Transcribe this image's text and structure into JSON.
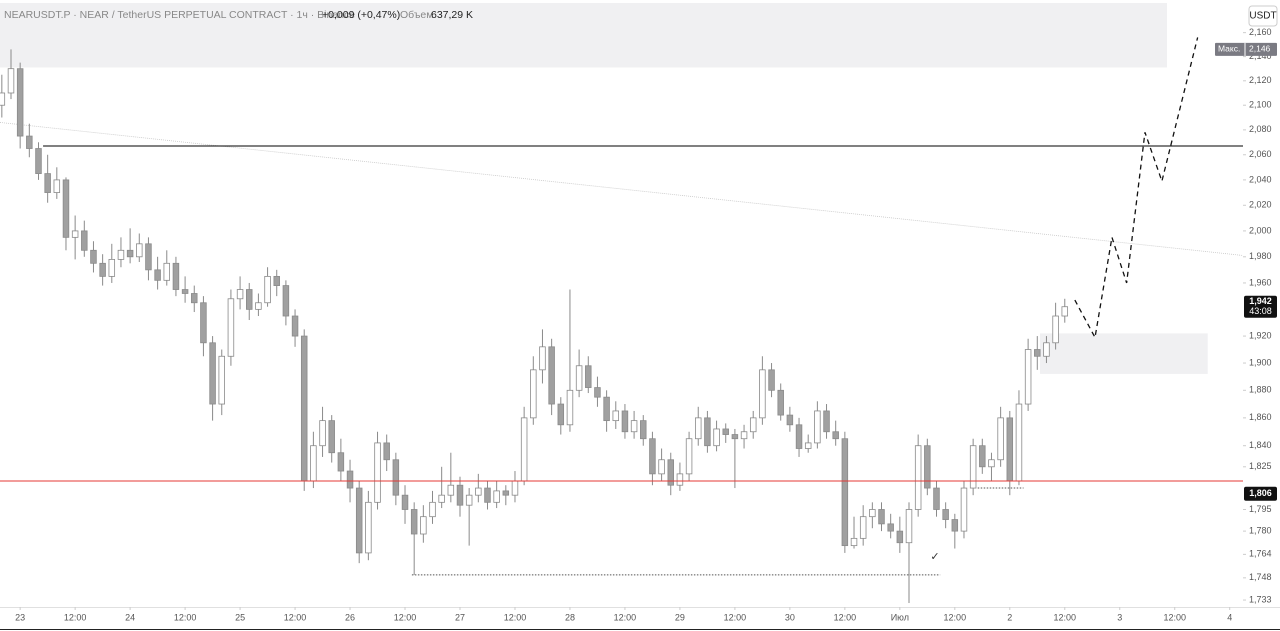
{
  "chart_data": {
    "type": "candlestick",
    "title": "NEARUSDT.P · NEAR / TetherUS PERPETUAL CONTRACT · 1ч · Binance",
    "change": "+0,009 (+0,47%)",
    "volume_label": "Объем",
    "volume": "637,29 K",
    "currency": "USDT",
    "log_scale": true,
    "up_color": "#ffffff",
    "down_color": "#a0a0a0",
    "wick_color": "#8a8a8a",
    "xlim": [
      -4.4,
      266.9
    ],
    "ylim": [
      1729,
      2185
    ],
    "xticks": [
      {
        "value": 0,
        "label": "23"
      },
      {
        "value": 12,
        "label": "12:00"
      },
      {
        "value": 24,
        "label": "24"
      },
      {
        "value": 36,
        "label": "12:00"
      },
      {
        "value": 48,
        "label": "25"
      },
      {
        "value": 60,
        "label": "12:00"
      },
      {
        "value": 72,
        "label": "26"
      },
      {
        "value": 84,
        "label": "12:00"
      },
      {
        "value": 96,
        "label": "27"
      },
      {
        "value": 108,
        "label": "12:00"
      },
      {
        "value": 120,
        "label": "28"
      },
      {
        "value": 132,
        "label": "12:00"
      },
      {
        "value": 144,
        "label": "29"
      },
      {
        "value": 156,
        "label": "12:00"
      },
      {
        "value": 168,
        "label": "30"
      },
      {
        "value": 180,
        "label": "12:00"
      },
      {
        "value": 192,
        "label": "Июл"
      },
      {
        "value": 204,
        "label": "12:00"
      },
      {
        "value": 216,
        "label": "2"
      },
      {
        "value": 228,
        "label": "12:00"
      },
      {
        "value": 240,
        "label": "3"
      },
      {
        "value": 252,
        "label": "12:00"
      },
      {
        "value": 264,
        "label": "4"
      }
    ],
    "yticks": [
      {
        "value": 2160,
        "label": "2,160"
      },
      {
        "value": 2140,
        "label": "2,140"
      },
      {
        "value": 2120,
        "label": "2,120"
      },
      {
        "value": 2100,
        "label": "2,100"
      },
      {
        "value": 2080,
        "label": "2,080"
      },
      {
        "value": 2060,
        "label": "2,060"
      },
      {
        "value": 2040,
        "label": "2,040"
      },
      {
        "value": 2020,
        "label": "2,020"
      },
      {
        "value": 2000,
        "label": "2,000"
      },
      {
        "value": 1980,
        "label": "1,980"
      },
      {
        "value": 1960,
        "label": "1,960"
      },
      {
        "value": 1920,
        "label": "1,920"
      },
      {
        "value": 1900,
        "label": "1,900"
      },
      {
        "value": 1880,
        "label": "1,880"
      },
      {
        "value": 1860,
        "label": "1,860"
      },
      {
        "value": 1840,
        "label": "1,840"
      },
      {
        "value": 1825,
        "label": "1,825"
      },
      {
        "value": 1795,
        "label": "1,795"
      },
      {
        "value": 1780,
        "label": "1,780"
      },
      {
        "value": 1764,
        "label": "1,764"
      },
      {
        "value": 1748,
        "label": "1,748"
      },
      {
        "value": 1733,
        "label": "1,733"
      }
    ],
    "x": [
      -4,
      -2,
      0,
      2,
      4,
      6,
      8,
      10,
      12,
      14,
      16,
      18,
      20,
      22,
      24,
      26,
      28,
      30,
      32,
      34,
      36,
      38,
      40,
      42,
      44,
      46,
      48,
      50,
      52,
      54,
      56,
      58,
      60,
      62,
      64,
      66,
      68,
      70,
      72,
      74,
      76,
      78,
      80,
      82,
      84,
      86,
      88,
      90,
      92,
      94,
      96,
      98,
      100,
      102,
      104,
      106,
      108,
      110,
      112,
      114,
      116,
      118,
      120,
      122,
      124,
      126,
      128,
      130,
      132,
      134,
      136,
      138,
      140,
      142,
      144,
      146,
      148,
      150,
      152,
      154,
      156,
      158,
      160,
      162,
      164,
      166,
      168,
      170,
      172,
      174,
      176,
      178,
      180,
      182,
      184,
      186,
      188,
      190,
      192,
      194,
      196,
      198,
      200,
      202,
      204,
      206,
      208,
      210,
      212,
      214,
      216,
      218,
      220,
      222,
      224,
      226,
      228
    ],
    "open": [
      2100,
      2110,
      2130,
      2075,
      2065,
      2045,
      2030,
      2040,
      1995,
      2000,
      1985,
      1975,
      1965,
      1978,
      1985,
      1980,
      1990,
      1970,
      1962,
      1975,
      1955,
      1952,
      1945,
      1915,
      1870,
      1905,
      1948,
      1955,
      1940,
      1945,
      1965,
      1958,
      1935,
      1920,
      1815,
      1840,
      1858,
      1835,
      1822,
      1810,
      1765,
      1800,
      1842,
      1830,
      1805,
      1795,
      1778,
      1790,
      1800,
      1805,
      1812,
      1798,
      1805,
      1810,
      1800,
      1808,
      1805,
      1815,
      1860,
      1895,
      1912,
      1870,
      1855,
      1880,
      1898,
      1882,
      1875,
      1858,
      1865,
      1850,
      1858,
      1845,
      1820,
      1830,
      1812,
      1820,
      1845,
      1860,
      1840,
      1852,
      1848,
      1845,
      1850,
      1860,
      1895,
      1880,
      1862,
      1855,
      1838,
      1842,
      1865,
      1850,
      1845,
      1770,
      1775,
      1790,
      1795,
      1785,
      1780,
      1772,
      1795,
      1840,
      1810,
      1795,
      1788,
      1780,
      1810,
      1840,
      1825,
      1830,
      1860,
      1815,
      1870,
      1910,
      1905,
      1915,
      1935
    ],
    "high": [
      2125,
      2146,
      2135,
      2085,
      2070,
      2060,
      2050,
      2042,
      2012,
      2008,
      1992,
      1982,
      1990,
      1995,
      2002,
      1998,
      1995,
      1980,
      1985,
      1980,
      1965,
      1958,
      1950,
      1920,
      1910,
      1955,
      1965,
      1960,
      1952,
      1972,
      1970,
      1962,
      1940,
      1925,
      1850,
      1868,
      1862,
      1845,
      1830,
      1815,
      1808,
      1850,
      1848,
      1835,
      1812,
      1800,
      1798,
      1808,
      1825,
      1835,
      1818,
      1810,
      1820,
      1815,
      1815,
      1812,
      1822,
      1868,
      1905,
      1925,
      1918,
      1875,
      1955,
      1910,
      1905,
      1890,
      1880,
      1872,
      1870,
      1865,
      1862,
      1850,
      1838,
      1835,
      1828,
      1850,
      1868,
      1865,
      1858,
      1856,
      1852,
      1855,
      1865,
      1905,
      1900,
      1885,
      1868,
      1860,
      1848,
      1872,
      1870,
      1858,
      1850,
      1790,
      1798,
      1800,
      1800,
      1792,
      1790,
      1800,
      1848,
      1845,
      1815,
      1800,
      1792,
      1815,
      1845,
      1845,
      1835,
      1868,
      1865,
      1880,
      1918,
      1920,
      1920,
      1945,
      1948
    ],
    "low": [
      2090,
      2105,
      2065,
      2058,
      2040,
      2022,
      2025,
      1985,
      1978,
      1980,
      1968,
      1958,
      1960,
      1972,
      1975,
      1976,
      1962,
      1955,
      1958,
      1950,
      1945,
      1938,
      1905,
      1858,
      1862,
      1898,
      1940,
      1932,
      1935,
      1942,
      1950,
      1928,
      1912,
      1808,
      1810,
      1832,
      1828,
      1815,
      1800,
      1758,
      1760,
      1795,
      1822,
      1798,
      1785,
      1750,
      1772,
      1785,
      1796,
      1800,
      1790,
      1770,
      1800,
      1795,
      1796,
      1798,
      1800,
      1812,
      1855,
      1885,
      1862,
      1848,
      1850,
      1875,
      1878,
      1868,
      1850,
      1852,
      1845,
      1845,
      1840,
      1812,
      1815,
      1805,
      1808,
      1815,
      1840,
      1835,
      1836,
      1842,
      1810,
      1838,
      1845,
      1855,
      1875,
      1858,
      1850,
      1832,
      1835,
      1838,
      1845,
      1840,
      1765,
      1768,
      1770,
      1782,
      1780,
      1775,
      1765,
      1731,
      1790,
      1805,
      1790,
      1782,
      1768,
      1775,
      1805,
      1820,
      1815,
      1825,
      1805,
      1812,
      1865,
      1895,
      1900,
      1910,
      1930
    ],
    "close": [
      2110,
      2130,
      2075,
      2065,
      2045,
      2030,
      2040,
      1995,
      2000,
      1985,
      1975,
      1965,
      1978,
      1985,
      1980,
      1990,
      1970,
      1962,
      1975,
      1955,
      1952,
      1945,
      1915,
      1870,
      1905,
      1948,
      1955,
      1940,
      1945,
      1965,
      1958,
      1935,
      1920,
      1815,
      1840,
      1858,
      1835,
      1822,
      1810,
      1765,
      1800,
      1842,
      1830,
      1805,
      1795,
      1778,
      1790,
      1800,
      1805,
      1812,
      1798,
      1805,
      1810,
      1800,
      1808,
      1805,
      1815,
      1860,
      1895,
      1912,
      1870,
      1855,
      1880,
      1898,
      1882,
      1875,
      1858,
      1865,
      1850,
      1858,
      1845,
      1820,
      1830,
      1812,
      1820,
      1845,
      1860,
      1840,
      1852,
      1848,
      1845,
      1850,
      1860,
      1895,
      1880,
      1862,
      1855,
      1838,
      1842,
      1865,
      1850,
      1845,
      1770,
      1775,
      1790,
      1795,
      1785,
      1780,
      1772,
      1795,
      1840,
      1810,
      1795,
      1788,
      1780,
      1810,
      1840,
      1825,
      1830,
      1860,
      1815,
      1870,
      1910,
      1905,
      1915,
      1935,
      1942
    ],
    "hlines": [
      {
        "value": 2067,
        "from": 5,
        "to": 266.9,
        "color": "#000000",
        "dashed": false
      },
      {
        "value": 1815,
        "from": -4.4,
        "to": 266.9,
        "color": "#e53935",
        "dashed": false
      },
      {
        "value": 1750,
        "from": 85.5,
        "to": 200.8,
        "color": "#555555",
        "dashed": true
      },
      {
        "value": 1810,
        "from": 209,
        "to": 219,
        "color": "#555555",
        "dashed": true
      }
    ],
    "trendline": {
      "x": [
        -4.4,
        266.9
      ],
      "y": [
        2086,
        1981
      ]
    },
    "zones": [
      {
        "x": [
          -4.4,
          250.3
        ],
        "y": [
          2185,
          2131
        ]
      },
      {
        "x": [
          222.6,
          259.2
        ],
        "y": [
          1922,
          1892
        ]
      }
    ],
    "projection": {
      "x": [
        230.2,
        234.6,
        238.3,
        241.5,
        245.5,
        249.2,
        257.0
      ],
      "y": [
        1947,
        1919,
        1995,
        1960,
        2078,
        2039,
        2156
      ]
    },
    "max_label": "Макс.",
    "max_value": 2146,
    "max_value_label": "2,146",
    "last_price": 1942,
    "last_price_label": "1,942",
    "countdown": "43:08",
    "level_value": 1806,
    "level_label": "1,806",
    "annotation": "✓"
  }
}
